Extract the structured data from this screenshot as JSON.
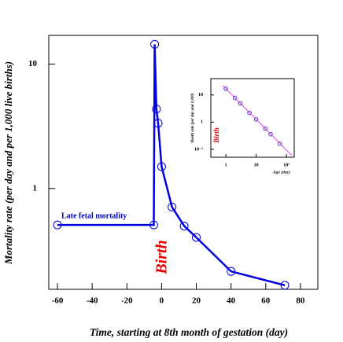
{
  "chart_data": [
    {
      "type": "line",
      "xlabel": "Time, starting at 8th month of gestation (day)",
      "ylabel": "Mortality rate (per day and per 1,000 live births)",
      "annotations": [
        "Late fetal mortality",
        "Birth"
      ],
      "xlim": [
        -65,
        90
      ],
      "ylim": [
        0.155,
        17
      ],
      "ylog": true,
      "xticks": [
        -60,
        -40,
        -20,
        0,
        20,
        40,
        60,
        80
      ],
      "yticks": [
        1,
        10
      ],
      "series": [
        {
          "color": "#0000e0",
          "style": "line-markers",
          "x": [
            -60,
            -4.5,
            -4,
            -3,
            -2,
            0,
            6,
            13,
            20,
            40,
            71
          ],
          "values": [
            0.51,
            0.51,
            14.4,
            4.35,
            3.35,
            1.5,
            0.71,
            0.5,
            0.405,
            0.216,
            0.167
          ]
        }
      ]
    },
    {
      "type": "line",
      "xlabel": "Age (day)",
      "ylabel": "Death rate (per day and 1,000)",
      "annotations": [
        "Birth"
      ],
      "xlim": [
        0.32,
        180
      ],
      "ylim": [
        0.051,
        40
      ],
      "xlog": true,
      "ylog": true,
      "xticks": [
        1,
        10,
        {
          "value": 100,
          "label": "10²"
        }
      ],
      "yticks": [
        {
          "value": 0.1,
          "label": "10⁻¹"
        },
        1,
        10
      ],
      "series": [
        {
          "color": "#4040d0",
          "style": "markers",
          "x": [
            1,
            2,
            3,
            6,
            10,
            20,
            30,
            60
          ],
          "values": [
            17,
            7.7,
            4.9,
            2.2,
            1.26,
            0.58,
            0.36,
            0.16
          ]
        },
        {
          "color": "#e040e0",
          "style": "line",
          "x": [
            0.8,
            150
          ],
          "values": [
            22,
            0.059
          ]
        }
      ]
    }
  ]
}
